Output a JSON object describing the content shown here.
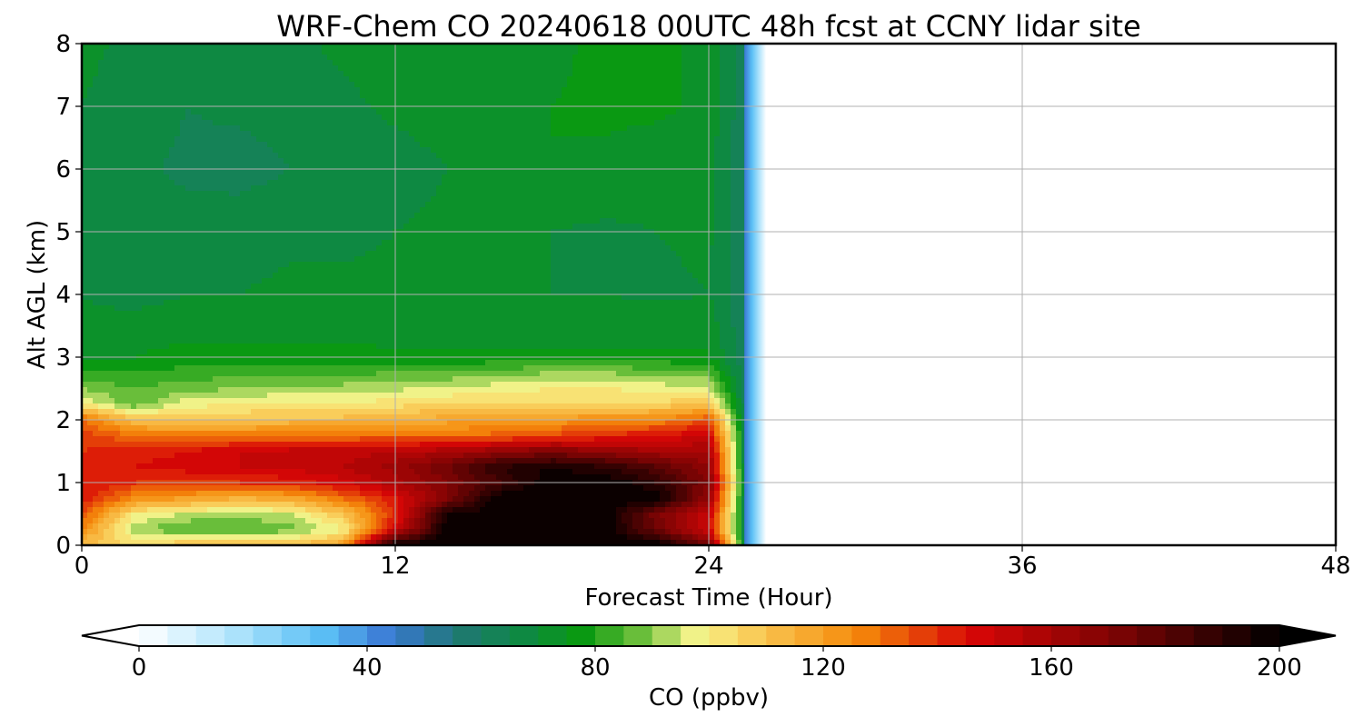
{
  "chart_data": {
    "type": "heatmap",
    "title": "WRF-Chem CO  20240618 00UTC 48h fcst at CCNY lidar site",
    "xlabel": "Forecast Time (Hour)",
    "ylabel": "Alt AGL (km)",
    "xlim": [
      0,
      48
    ],
    "ylim": [
      0,
      8
    ],
    "x_ticks": [
      0,
      12,
      24,
      36,
      48
    ],
    "y_ticks": [
      0,
      1,
      2,
      3,
      4,
      5,
      6,
      7,
      8
    ],
    "grid": true,
    "x": [
      0,
      2,
      4,
      6,
      8,
      10,
      12,
      14,
      16,
      18,
      20,
      22,
      24,
      25.5
    ],
    "y": [
      0,
      0.25,
      0.5,
      0.75,
      1,
      1.25,
      1.5,
      1.75,
      2,
      2.25,
      2.5,
      2.75,
      3,
      3.5,
      4,
      5,
      6,
      7,
      8
    ],
    "z": [
      [
        110,
        105,
        110,
        112,
        110,
        120,
        200,
        200,
        200,
        200,
        200,
        200,
        175,
        60
      ],
      [
        125,
        92,
        84,
        84,
        88,
        98,
        150,
        200,
        200,
        200,
        200,
        175,
        148,
        60
      ],
      [
        135,
        100,
        95,
        92,
        95,
        110,
        140,
        195,
        200,
        200,
        200,
        172,
        152,
        60
      ],
      [
        145,
        125,
        120,
        115,
        118,
        130,
        145,
        170,
        200,
        200,
        200,
        200,
        165,
        60
      ],
      [
        145,
        140,
        138,
        140,
        142,
        148,
        158,
        170,
        185,
        200,
        200,
        190,
        170,
        60
      ],
      [
        142,
        145,
        148,
        150,
        152,
        155,
        162,
        175,
        190,
        195,
        190,
        180,
        165,
        60
      ],
      [
        140,
        142,
        145,
        150,
        152,
        152,
        155,
        158,
        165,
        170,
        165,
        160,
        160,
        60
      ],
      [
        138,
        130,
        128,
        128,
        130,
        130,
        130,
        130,
        132,
        136,
        140,
        145,
        150,
        60
      ],
      [
        132,
        110,
        108,
        110,
        112,
        112,
        115,
        118,
        120,
        122,
        124,
        125,
        135,
        60
      ],
      [
        100,
        86,
        98,
        100,
        100,
        100,
        103,
        105,
        106,
        106,
        106,
        106,
        110,
        60
      ],
      [
        90,
        85,
        88,
        90,
        92,
        92,
        94,
        96,
        98,
        100,
        100,
        98,
        96,
        60
      ],
      [
        80,
        80,
        82,
        83,
        84,
        84,
        85,
        86,
        88,
        90,
        90,
        88,
        86,
        60
      ],
      [
        74,
        75,
        77,
        77,
        77,
        77,
        76,
        76,
        76,
        76,
        76,
        76,
        76,
        60
      ],
      [
        71,
        72,
        73,
        73,
        73,
        73,
        72,
        72,
        72,
        73,
        73,
        73,
        73,
        60
      ],
      [
        70,
        68,
        70,
        70,
        71,
        71,
        71,
        71,
        70,
        70,
        70,
        69,
        70,
        60
      ],
      [
        69,
        67,
        67,
        68,
        69,
        69,
        70,
        71,
        71,
        70,
        69,
        70,
        71,
        60
      ],
      [
        68,
        66,
        64,
        63,
        65,
        66,
        68,
        70,
        72,
        75,
        74,
        72,
        71,
        60
      ],
      [
        70,
        68,
        65,
        66,
        67,
        69,
        71,
        72,
        73,
        75,
        76,
        76,
        74,
        60
      ],
      [
        71,
        69,
        67,
        68,
        69,
        71,
        72,
        73,
        73,
        74,
        76,
        76,
        74,
        60
      ]
    ],
    "colorbar": {
      "label": "CO  (ppbv)",
      "min": 0,
      "max": 200,
      "ticks": [
        0,
        40,
        80,
        120,
        160,
        200
      ],
      "extend": "both",
      "levels": 40,
      "colors": [
        "#ffffff",
        "#b3e5fc",
        "#5bc0f5",
        "#3a78d4",
        "#1f7872",
        "#0d8a40",
        "#0a9a10",
        "#6ec03c",
        "#f7f58c",
        "#f9c24d",
        "#f58a0a",
        "#d80606",
        "#7a0404",
        "#000000"
      ],
      "color_stops": [
        0,
        16,
        32,
        44,
        56,
        68,
        78,
        88,
        98,
        110,
        126,
        146,
        172,
        200
      ]
    }
  }
}
